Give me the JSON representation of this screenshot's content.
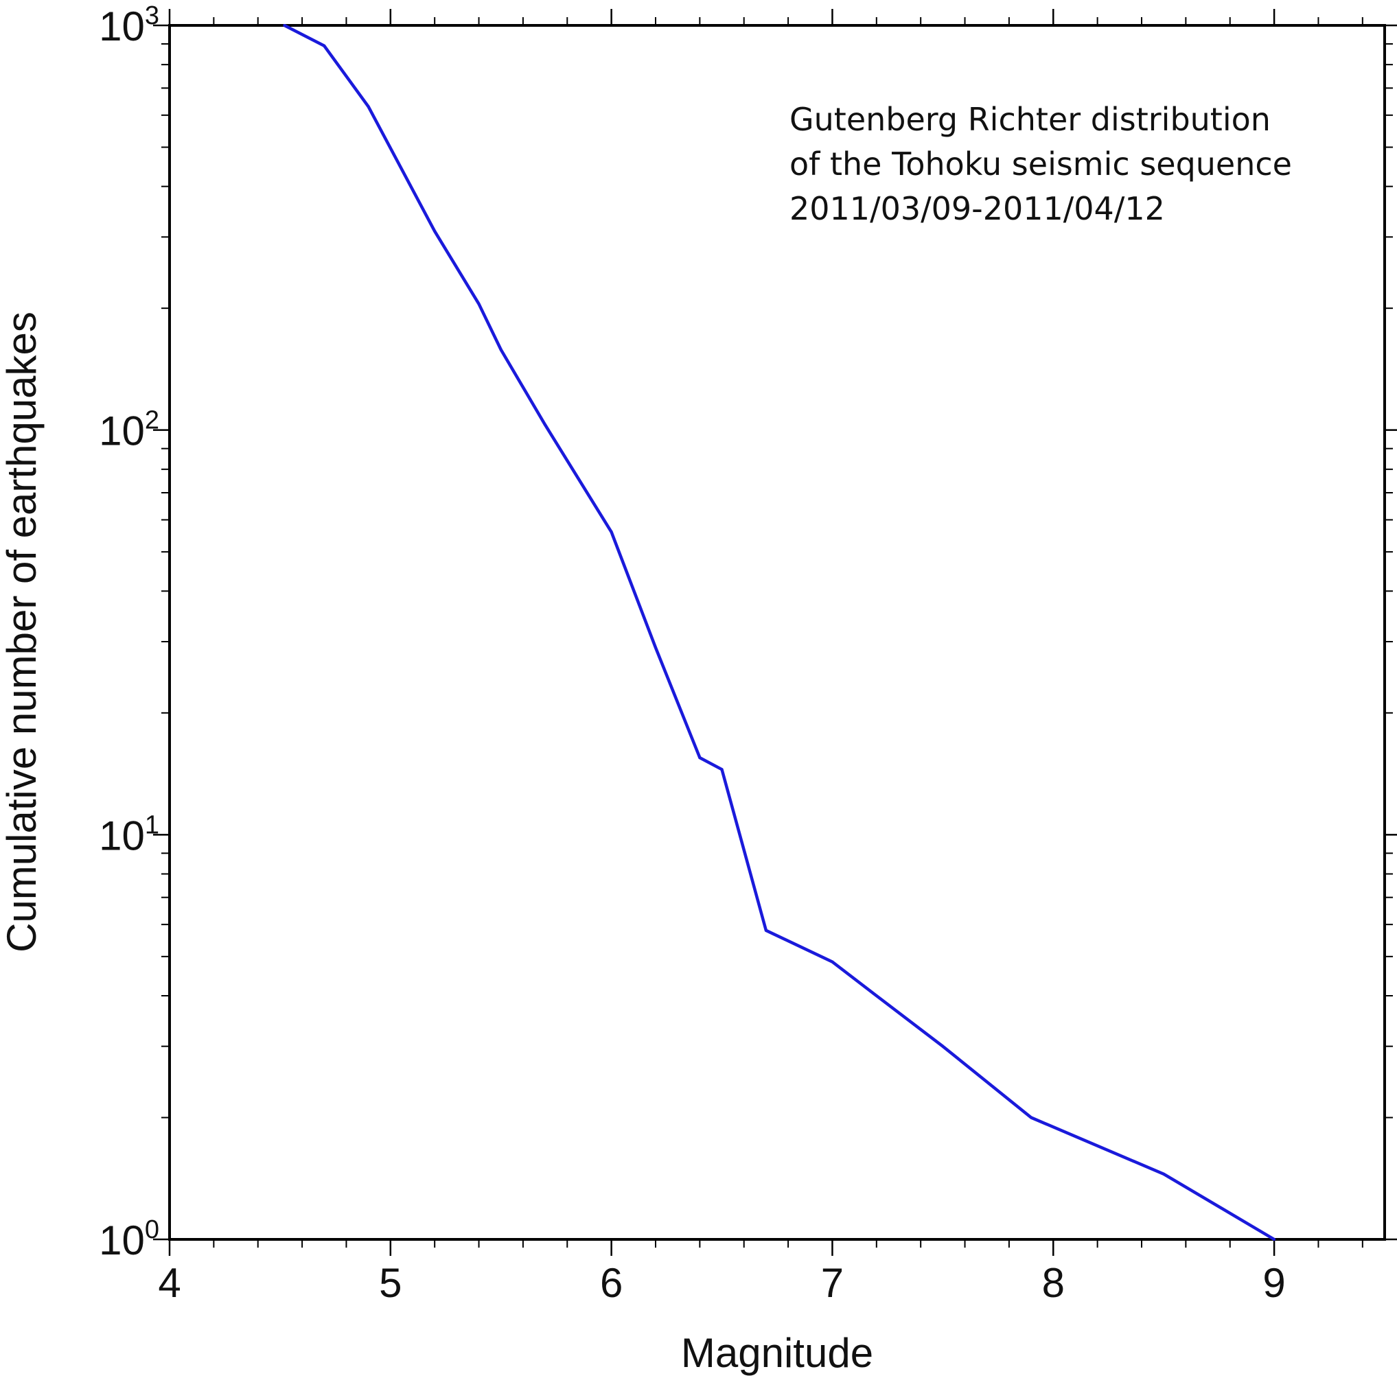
{
  "chart_data": {
    "type": "line",
    "title": "",
    "xlabel": "Magnitude",
    "ylabel": "Cumulative number of earthquakes",
    "xlim": [
      4,
      9.5
    ],
    "ylim": [
      1,
      1000
    ],
    "y_scale": "log",
    "grid": false,
    "legend": "none",
    "x_ticks": [
      {
        "value": 4,
        "label": "4"
      },
      {
        "value": 5,
        "label": "5"
      },
      {
        "value": 6,
        "label": "6"
      },
      {
        "value": 7,
        "label": "7"
      },
      {
        "value": 8,
        "label": "8"
      },
      {
        "value": 9,
        "label": "9"
      }
    ],
    "y_ticks": [
      {
        "value": 1,
        "base": "10",
        "exp": "0"
      },
      {
        "value": 10,
        "base": "10",
        "exp": "1"
      },
      {
        "value": 100,
        "base": "10",
        "exp": "2"
      },
      {
        "value": 1000,
        "base": "10",
        "exp": "3"
      }
    ],
    "annotation": {
      "lines": [
        "Gutenberg  Richter  distribution",
        "of the Tohoku seismic sequence",
        "2011/03/09-2011/04/12"
      ],
      "position": "top-right"
    },
    "series": [
      {
        "color": "#1a1adb",
        "x": [
          4.52,
          4.7,
          4.9,
          5.2,
          5.4,
          5.5,
          5.7,
          6.0,
          6.2,
          6.4,
          6.5,
          6.7,
          7.0,
          7.2,
          7.5,
          7.9,
          8.5,
          9.0
        ],
        "y": [
          1000,
          890,
          630,
          310,
          205,
          158,
          103,
          56,
          29,
          15.5,
          14.5,
          5.8,
          4.85,
          4.0,
          3.0,
          2.0,
          1.45,
          1.0
        ]
      }
    ]
  }
}
